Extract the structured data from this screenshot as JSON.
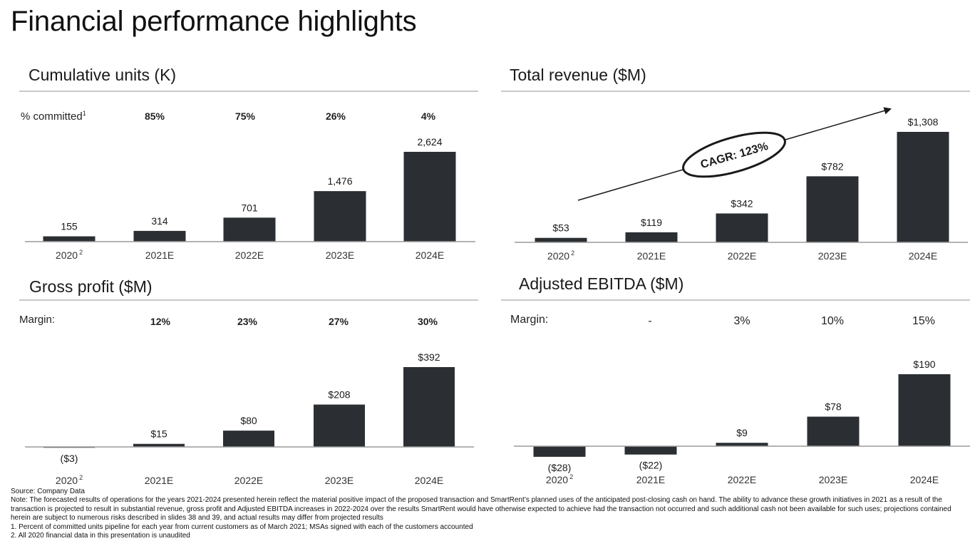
{
  "page_title": "Financial performance highlights",
  "colors": {
    "bar": "#2b2f33",
    "rule": "#c9c9c9",
    "axis": "#9a9a9a",
    "text": "#1a1a1a"
  },
  "panels": {
    "units": {
      "title": "Cumulative units (K)",
      "row_label": "% committed",
      "row_label_sup": "1",
      "row_values": [
        "",
        "85%",
        "75%",
        "26%",
        "4%"
      ]
    },
    "revenue": {
      "title": "Total revenue ($M)",
      "cagr_label": "CAGR: 123%"
    },
    "gross": {
      "title": "Gross profit ($M)",
      "row_label": "Margin:",
      "row_values": [
        "",
        "12%",
        "23%",
        "27%",
        "30%"
      ]
    },
    "ebitda": {
      "title": "Adjusted EBITDA ($M)",
      "row_label": "Margin:",
      "row_values": [
        "",
        "-",
        "3%",
        "10%",
        "15%"
      ]
    }
  },
  "chart_data": [
    {
      "type": "bar",
      "title": "Cumulative units (K)",
      "categories": [
        "2020",
        "2021E",
        "2022E",
        "2023E",
        "2024E"
      ],
      "category_sup": [
        "2",
        "",
        "",
        "",
        ""
      ],
      "values": [
        155,
        314,
        701,
        1476,
        2624
      ],
      "labels": [
        "155",
        "314",
        "701",
        "1,476",
        "2,624"
      ],
      "ylim": [
        0,
        2624
      ],
      "grid": false
    },
    {
      "type": "bar",
      "title": "Total revenue ($M)",
      "categories": [
        "2020",
        "2021E",
        "2022E",
        "2023E",
        "2024E"
      ],
      "category_sup": [
        "2",
        "",
        "",
        "",
        ""
      ],
      "values": [
        53,
        119,
        342,
        782,
        1308
      ],
      "labels": [
        "$53",
        "$119",
        "$342",
        "$782",
        "$1,308"
      ],
      "ylim": [
        0,
        1308
      ],
      "grid": false,
      "annotations": [
        "CAGR: 123%"
      ]
    },
    {
      "type": "bar",
      "title": "Gross profit ($M)",
      "categories": [
        "2020",
        "2021E",
        "2022E",
        "2023E",
        "2024E"
      ],
      "category_sup": [
        "2",
        "",
        "",
        "",
        ""
      ],
      "values": [
        -3,
        15,
        80,
        208,
        392
      ],
      "labels": [
        "($3)",
        "$15",
        "$80",
        "$208",
        "$392"
      ],
      "ylim": [
        -3,
        392
      ],
      "grid": false
    },
    {
      "type": "bar",
      "title": "Adjusted EBITDA ($M)",
      "categories": [
        "2020",
        "2021E",
        "2022E",
        "2023E",
        "2024E"
      ],
      "category_sup": [
        "2",
        "",
        "",
        "",
        ""
      ],
      "values": [
        -28,
        -22,
        9,
        78,
        190
      ],
      "labels": [
        "($28)",
        "($22)",
        "$9",
        "$78",
        "$190"
      ],
      "ylim": [
        -28,
        190
      ],
      "grid": false
    }
  ],
  "footnotes": {
    "source": "Source: Company Data",
    "note": "Note: The forecasted results of operations for the years 2021-2024 presented herein reflect the material positive impact of the proposed transaction and SmartRent’s planned uses of the anticipated post-closing cash on hand. The ability to advance these growth initiatives in 2021 as a result of the transaction is projected to result in substantial revenue, gross profit and Adjusted EBITDA increases in 2022-2024 over the results SmartRent would have otherwise expected to achieve had the transaction not occurred and such additional cash not been available for such uses; projections contained herein are subject to numerous risks described in slides 38 and 39, and actual results may differ from projected results",
    "fn1": "1. Percent of committed units pipeline for each year from current customers as of March 2021; MSAs signed with each of the customers accounted",
    "fn2": "2. All 2020 financial data in this presentation is unaudited"
  }
}
